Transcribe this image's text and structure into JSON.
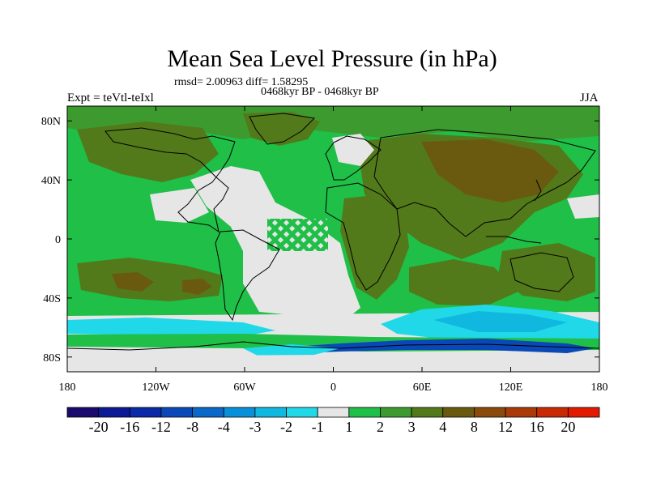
{
  "title": "Mean Sea Level Pressure (in hPa)",
  "stats_line": "rmsd= 2.00963 diff= 1.58295",
  "subtitle": "0468kyr BP - 0468kyr BP",
  "expt_label": "Expt = teVtl-teIxl",
  "season": "JJA",
  "axes": {
    "x_ticks": [
      {
        "lon": -180,
        "label": "180"
      },
      {
        "lon": -120,
        "label": "120W"
      },
      {
        "lon": -60,
        "label": "60W"
      },
      {
        "lon": 0,
        "label": "0"
      },
      {
        "lon": 60,
        "label": "60E"
      },
      {
        "lon": 120,
        "label": "120E"
      },
      {
        "lon": 180,
        "label": "180"
      }
    ],
    "y_ticks": [
      {
        "lat": 80,
        "label": "80N"
      },
      {
        "lat": 40,
        "label": "40N"
      },
      {
        "lat": 0,
        "label": "0"
      },
      {
        "lat": -40,
        "label": "40S"
      },
      {
        "lat": -80,
        "label": "80S"
      }
    ],
    "lon_range": [
      -180,
      180
    ],
    "lat_range": [
      -90,
      90
    ]
  },
  "colorbar": {
    "boundaries": [
      "-20",
      "-16",
      "-12",
      "-8",
      "-4",
      "-3",
      "-2",
      "-1",
      "1",
      "2",
      "3",
      "4",
      "8",
      "12",
      "16",
      "20"
    ],
    "colors": [
      "#1a0a6e",
      "#0d1a96",
      "#0a2aa8",
      "#0a48b8",
      "#0a68c8",
      "#0a90d8",
      "#10b8e0",
      "#20d8e8",
      "#e6e6e6",
      "#1fbf48",
      "#3c9a2e",
      "#527a1a",
      "#6a5a10",
      "#8a4a0c",
      "#aa3a08",
      "#c82a04",
      "#e21a00"
    ]
  },
  "field_colors": {
    "ocean_base": "#1fbf48",
    "near_zero": "#e6e6e6",
    "dark_green": "#3c9a2e",
    "olive": "#527a1a",
    "brown": "#6a5a10",
    "light_blue": "#20d8e8",
    "cyan": "#10b8e0",
    "blue": "#0a48b8",
    "coastline": "#000000"
  }
}
